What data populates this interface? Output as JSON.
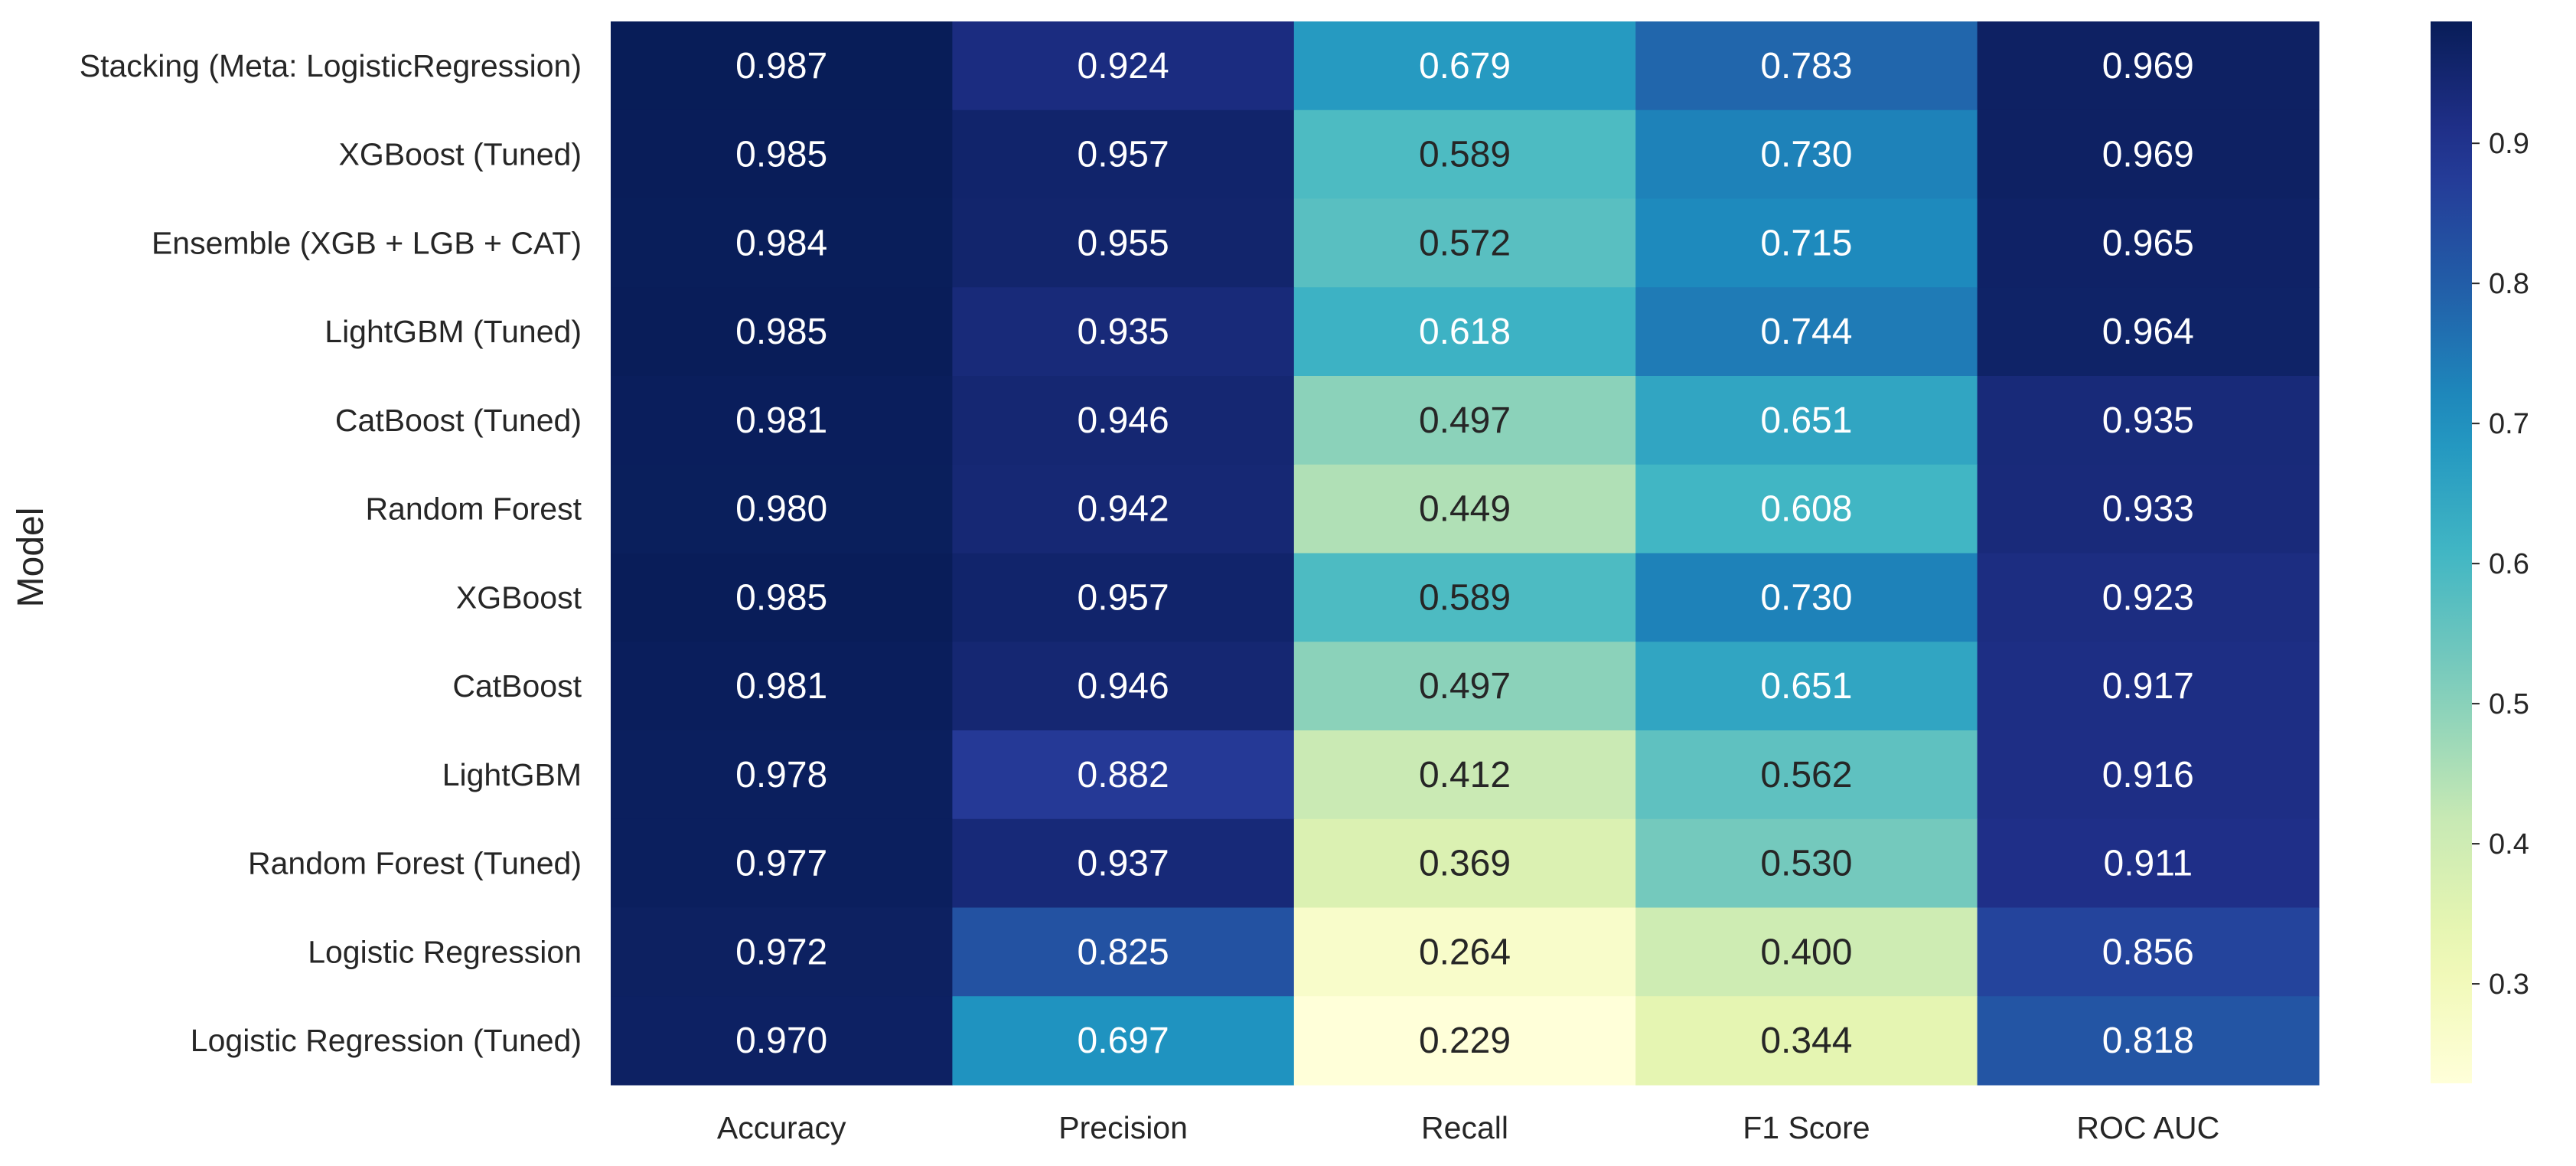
{
  "chart_data": {
    "type": "heatmap",
    "ylabel": "Model",
    "xlabel": "",
    "rows": [
      "Stacking (Meta: LogisticRegression)",
      "XGBoost (Tuned)",
      "Ensemble (XGB + LGB + CAT)",
      "LightGBM (Tuned)",
      "CatBoost (Tuned)",
      "Random Forest",
      "XGBoost",
      "CatBoost",
      "LightGBM",
      "Random Forest (Tuned)",
      "Logistic Regression",
      "Logistic Regression (Tuned)"
    ],
    "columns": [
      "Accuracy",
      "Precision",
      "Recall",
      "F1 Score",
      "ROC AUC"
    ],
    "values": [
      [
        0.987,
        0.924,
        0.679,
        0.783,
        0.969
      ],
      [
        0.985,
        0.957,
        0.589,
        0.73,
        0.969
      ],
      [
        0.984,
        0.955,
        0.572,
        0.715,
        0.965
      ],
      [
        0.985,
        0.935,
        0.618,
        0.744,
        0.964
      ],
      [
        0.981,
        0.946,
        0.497,
        0.651,
        0.935
      ],
      [
        0.98,
        0.942,
        0.449,
        0.608,
        0.933
      ],
      [
        0.985,
        0.957,
        0.589,
        0.73,
        0.923
      ],
      [
        0.981,
        0.946,
        0.497,
        0.651,
        0.917
      ],
      [
        0.978,
        0.882,
        0.412,
        0.562,
        0.916
      ],
      [
        0.977,
        0.937,
        0.369,
        0.53,
        0.911
      ],
      [
        0.972,
        0.825,
        0.264,
        0.4,
        0.856
      ],
      [
        0.97,
        0.697,
        0.229,
        0.344,
        0.818
      ]
    ],
    "value_format": "3 decimals",
    "colormap": "YlGnBu",
    "color_range": [
      0.229,
      0.987
    ],
    "colorbar": {
      "ticks": [
        0.3,
        0.4,
        0.5,
        0.6,
        0.7,
        0.8,
        0.9
      ],
      "tick_labels": [
        "0.3",
        "0.4",
        "0.5",
        "0.6",
        "0.7",
        "0.8",
        "0.9"
      ],
      "placement": "right"
    },
    "grid": false
  }
}
